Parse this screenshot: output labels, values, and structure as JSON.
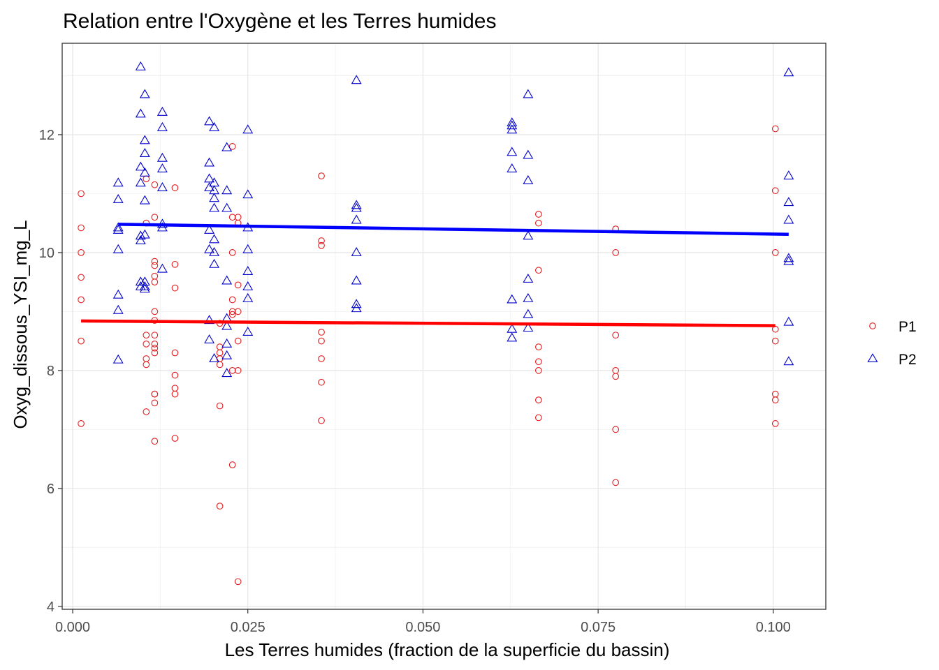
{
  "chart_data": {
    "type": "scatter",
    "title": "Relation entre l'Oxygène et les Terres humides",
    "xlabel": "Les Terres humides (fraction de la superficie du bassin)",
    "ylabel": "Oxyg_dissous_YSI_mg_L",
    "xlim": [
      -0.0015,
      0.1075
    ],
    "ylim": [
      3.95,
      13.55
    ],
    "x_ticks": [
      0.0,
      0.025,
      0.05,
      0.075,
      0.1
    ],
    "x_tick_labels": [
      "0.000",
      "0.025",
      "0.050",
      "0.075",
      "0.100"
    ],
    "y_ticks": [
      4,
      6,
      8,
      10,
      12
    ],
    "y_tick_labels": [
      "4",
      "6",
      "8",
      "10",
      "12"
    ],
    "grid": true,
    "legend_position": "right",
    "series": [
      {
        "name": "P1",
        "marker": "circle",
        "color": "#e31a1c",
        "line_color": "#ff0000",
        "points": [
          [
            0.0012,
            11.0
          ],
          [
            0.0012,
            10.42
          ],
          [
            0.0012,
            10.0
          ],
          [
            0.0012,
            9.58
          ],
          [
            0.0012,
            9.2
          ],
          [
            0.0012,
            8.5
          ],
          [
            0.0012,
            7.1
          ],
          [
            0.0105,
            11.25
          ],
          [
            0.0105,
            10.5
          ],
          [
            0.0105,
            8.6
          ],
          [
            0.0105,
            8.45
          ],
          [
            0.0105,
            8.2
          ],
          [
            0.0105,
            8.1
          ],
          [
            0.0105,
            7.3
          ],
          [
            0.0117,
            11.15
          ],
          [
            0.0117,
            10.6
          ],
          [
            0.0117,
            9.85
          ],
          [
            0.0117,
            9.78
          ],
          [
            0.0117,
            9.6
          ],
          [
            0.0117,
            9.5
          ],
          [
            0.0117,
            9.0
          ],
          [
            0.0117,
            8.85
          ],
          [
            0.0117,
            8.6
          ],
          [
            0.0117,
            8.45
          ],
          [
            0.0117,
            8.38
          ],
          [
            0.0117,
            8.3
          ],
          [
            0.0117,
            7.6
          ],
          [
            0.0117,
            7.6
          ],
          [
            0.0117,
            7.45
          ],
          [
            0.0117,
            6.8
          ],
          [
            0.0146,
            11.1
          ],
          [
            0.0146,
            9.8
          ],
          [
            0.0146,
            9.4
          ],
          [
            0.0146,
            8.3
          ],
          [
            0.0146,
            7.92
          ],
          [
            0.0146,
            7.7
          ],
          [
            0.0146,
            7.6
          ],
          [
            0.0146,
            6.85
          ],
          [
            0.021,
            8.8
          ],
          [
            0.021,
            8.4
          ],
          [
            0.021,
            8.3
          ],
          [
            0.021,
            8.2
          ],
          [
            0.021,
            8.1
          ],
          [
            0.021,
            7.4
          ],
          [
            0.021,
            5.7
          ],
          [
            0.0228,
            11.8
          ],
          [
            0.0228,
            10.6
          ],
          [
            0.0228,
            10.0
          ],
          [
            0.0228,
            9.2
          ],
          [
            0.0228,
            9.0
          ],
          [
            0.0228,
            8.95
          ],
          [
            0.0228,
            8.0
          ],
          [
            0.0228,
            6.4
          ],
          [
            0.0236,
            10.6
          ],
          [
            0.0236,
            10.5
          ],
          [
            0.0236,
            9.45
          ],
          [
            0.0236,
            9.0
          ],
          [
            0.0236,
            8.5
          ],
          [
            0.0236,
            8.0
          ],
          [
            0.0236,
            4.42
          ],
          [
            0.0355,
            11.3
          ],
          [
            0.0355,
            10.2
          ],
          [
            0.0355,
            10.12
          ],
          [
            0.0355,
            8.65
          ],
          [
            0.0355,
            8.5
          ],
          [
            0.0355,
            8.2
          ],
          [
            0.0355,
            7.8
          ],
          [
            0.0355,
            7.15
          ],
          [
            0.0665,
            10.65
          ],
          [
            0.0665,
            10.5
          ],
          [
            0.0665,
            9.7
          ],
          [
            0.0665,
            8.4
          ],
          [
            0.0665,
            8.15
          ],
          [
            0.0665,
            8.0
          ],
          [
            0.0665,
            7.5
          ],
          [
            0.0665,
            7.2
          ],
          [
            0.0775,
            10.4
          ],
          [
            0.0775,
            10.0
          ],
          [
            0.0775,
            8.6
          ],
          [
            0.0775,
            8.0
          ],
          [
            0.0775,
            7.9
          ],
          [
            0.0775,
            7.0
          ],
          [
            0.0775,
            6.1
          ],
          [
            0.1003,
            12.1
          ],
          [
            0.1003,
            11.05
          ],
          [
            0.1003,
            10.0
          ],
          [
            0.1003,
            8.7
          ],
          [
            0.1003,
            8.5
          ],
          [
            0.1003,
            7.6
          ],
          [
            0.1003,
            7.5
          ],
          [
            0.1003,
            7.1
          ]
        ],
        "fit_line": {
          "x": [
            0.0012,
            0.1003
          ],
          "y": [
            8.84,
            8.76
          ]
        }
      },
      {
        "name": "P2",
        "marker": "triangle",
        "color": "#0000cc",
        "line_color": "#0000ff",
        "points": [
          [
            0.0065,
            11.18
          ],
          [
            0.0065,
            10.9
          ],
          [
            0.0065,
            10.42
          ],
          [
            0.0065,
            10.38
          ],
          [
            0.0065,
            10.05
          ],
          [
            0.0065,
            9.28
          ],
          [
            0.0065,
            9.02
          ],
          [
            0.0065,
            8.18
          ],
          [
            0.0097,
            13.15
          ],
          [
            0.0097,
            12.35
          ],
          [
            0.0097,
            11.45
          ],
          [
            0.0097,
            11.18
          ],
          [
            0.0097,
            10.28
          ],
          [
            0.0097,
            10.2
          ],
          [
            0.0097,
            9.5
          ],
          [
            0.0097,
            9.42
          ],
          [
            0.0103,
            12.68
          ],
          [
            0.0103,
            11.9
          ],
          [
            0.0103,
            11.68
          ],
          [
            0.0103,
            11.35
          ],
          [
            0.0103,
            10.88
          ],
          [
            0.0103,
            10.3
          ],
          [
            0.0103,
            9.5
          ],
          [
            0.0103,
            9.42
          ],
          [
            0.0103,
            9.38
          ],
          [
            0.0128,
            12.38
          ],
          [
            0.0128,
            12.12
          ],
          [
            0.0128,
            11.6
          ],
          [
            0.0128,
            11.42
          ],
          [
            0.0128,
            11.1
          ],
          [
            0.0128,
            10.48
          ],
          [
            0.0128,
            10.42
          ],
          [
            0.0128,
            9.72
          ],
          [
            0.0195,
            12.22
          ],
          [
            0.0195,
            11.52
          ],
          [
            0.0195,
            11.25
          ],
          [
            0.0195,
            11.1
          ],
          [
            0.0195,
            10.38
          ],
          [
            0.0195,
            10.05
          ],
          [
            0.0195,
            8.85
          ],
          [
            0.0195,
            8.52
          ],
          [
            0.0202,
            12.12
          ],
          [
            0.0202,
            11.18
          ],
          [
            0.0202,
            11.05
          ],
          [
            0.0202,
            10.92
          ],
          [
            0.0202,
            10.75
          ],
          [
            0.0202,
            10.22
          ],
          [
            0.0202,
            10.0
          ],
          [
            0.0202,
            9.8
          ],
          [
            0.0202,
            8.2
          ],
          [
            0.022,
            11.78
          ],
          [
            0.022,
            11.05
          ],
          [
            0.022,
            10.75
          ],
          [
            0.022,
            9.52
          ],
          [
            0.022,
            8.88
          ],
          [
            0.022,
            8.75
          ],
          [
            0.022,
            8.45
          ],
          [
            0.022,
            8.25
          ],
          [
            0.022,
            7.95
          ],
          [
            0.025,
            12.08
          ],
          [
            0.025,
            10.98
          ],
          [
            0.025,
            10.42
          ],
          [
            0.025,
            10.05
          ],
          [
            0.025,
            9.68
          ],
          [
            0.025,
            9.42
          ],
          [
            0.025,
            9.22
          ],
          [
            0.025,
            8.65
          ],
          [
            0.0405,
            12.92
          ],
          [
            0.0405,
            10.8
          ],
          [
            0.0405,
            10.75
          ],
          [
            0.0405,
            10.55
          ],
          [
            0.0405,
            10.0
          ],
          [
            0.0405,
            9.52
          ],
          [
            0.0405,
            9.12
          ],
          [
            0.0405,
            9.05
          ],
          [
            0.0627,
            12.2
          ],
          [
            0.0627,
            12.15
          ],
          [
            0.0627,
            12.08
          ],
          [
            0.0627,
            11.7
          ],
          [
            0.0627,
            11.42
          ],
          [
            0.0627,
            9.2
          ],
          [
            0.0627,
            8.7
          ],
          [
            0.0627,
            8.55
          ],
          [
            0.065,
            12.68
          ],
          [
            0.065,
            11.65
          ],
          [
            0.065,
            11.22
          ],
          [
            0.065,
            10.28
          ],
          [
            0.065,
            9.55
          ],
          [
            0.065,
            9.22
          ],
          [
            0.065,
            8.95
          ],
          [
            0.065,
            8.72
          ],
          [
            0.1022,
            13.05
          ],
          [
            0.1022,
            11.3
          ],
          [
            0.1022,
            10.85
          ],
          [
            0.1022,
            10.55
          ],
          [
            0.1022,
            9.9
          ],
          [
            0.1022,
            9.85
          ],
          [
            0.1022,
            8.82
          ],
          [
            0.1022,
            8.15
          ]
        ],
        "fit_line": {
          "x": [
            0.0065,
            0.1022
          ],
          "y": [
            10.48,
            10.31
          ]
        }
      }
    ]
  }
}
